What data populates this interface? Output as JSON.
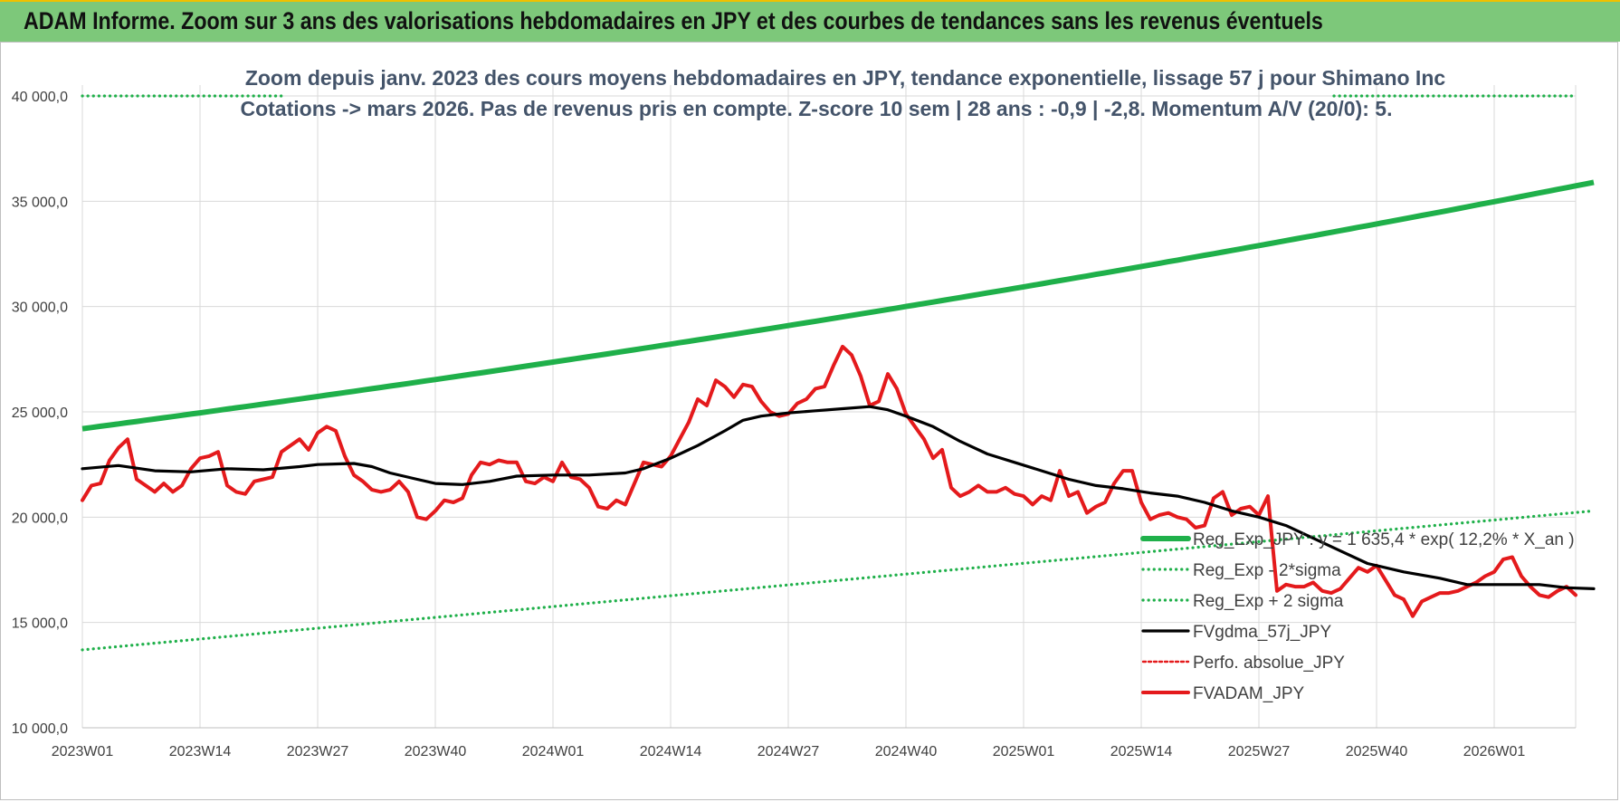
{
  "banner": {
    "title": "ADAM Informe. Zoom sur 3 ans des valorisations hebdomadaires en JPY et des courbes de tendances sans les revenus éventuels"
  },
  "chart_data": {
    "type": "line",
    "title_line1": "Zoom depuis janv. 2023 des cours moyens hebdomadaires en JPY, tendance exponentielle, lissage 57 j pour Shimano Inc",
    "title_line2": "Cotations -> mars 2026. Pas de revenus pris en compte. Z-score 10 sem | 28 ans : -0,9 | -2,8. Momentum A/V (20/0): 5.",
    "x_tick_labels": [
      "2023W01",
      "2023W14",
      "2023W27",
      "2023W40",
      "2024W01",
      "2024W14",
      "2024W27",
      "2024W40",
      "2025W01",
      "2025W14",
      "2025W27",
      "2025W40",
      "2026W01"
    ],
    "y_tick_labels": [
      "10 000,0",
      "15 000,0",
      "20 000,0",
      "25 000,0",
      "30 000,0",
      "35 000,0",
      "40 000,0"
    ],
    "ylim": [
      10000,
      40000
    ],
    "grid": true,
    "legend_position": "right",
    "colors": {
      "green": "#1fb04a",
      "red": "#e41a1c",
      "black": "#000000"
    },
    "series": [
      {
        "name": "Reg_Exp_JPY : y = 1 635,4 * exp( 12,2% * X_an )",
        "style": "solid",
        "color": "#1fb04a",
        "start": [
          0,
          24200
        ],
        "end": [
          167,
          35900
        ]
      },
      {
        "name": "Reg_Exp - 2*sigma",
        "style": "dotted",
        "color": "#1fb04a",
        "start": [
          0,
          13700
        ],
        "end": [
          167,
          20300
        ]
      },
      {
        "name": "Reg_Exp + 2 sigma",
        "style": "dotted",
        "color": "#1fb04a",
        "start": [
          0,
          40000
        ],
        "end": [
          167,
          40000
        ]
      },
      {
        "name": "FVgdma_57j_JPY",
        "style": "solid",
        "color": "#000000",
        "points": [
          [
            0,
            22300
          ],
          [
            4,
            22450
          ],
          [
            8,
            22200
          ],
          [
            12,
            22150
          ],
          [
            16,
            22300
          ],
          [
            20,
            22250
          ],
          [
            24,
            22400
          ],
          [
            26,
            22500
          ],
          [
            30,
            22550
          ],
          [
            32,
            22400
          ],
          [
            34,
            22100
          ],
          [
            37,
            21800
          ],
          [
            39,
            21600
          ],
          [
            42,
            21550
          ],
          [
            45,
            21700
          ],
          [
            48,
            21950
          ],
          [
            52,
            22000
          ],
          [
            56,
            22000
          ],
          [
            60,
            22100
          ],
          [
            62,
            22300
          ],
          [
            65,
            22800
          ],
          [
            68,
            23400
          ],
          [
            71,
            24100
          ],
          [
            73,
            24600
          ],
          [
            75,
            24800
          ],
          [
            78,
            24950
          ],
          [
            81,
            25050
          ],
          [
            84,
            25150
          ],
          [
            87,
            25250
          ],
          [
            89,
            25100
          ],
          [
            91,
            24800
          ],
          [
            94,
            24300
          ],
          [
            97,
            23600
          ],
          [
            100,
            23000
          ],
          [
            103,
            22600
          ],
          [
            106,
            22200
          ],
          [
            109,
            21800
          ],
          [
            112,
            21500
          ],
          [
            115,
            21350
          ],
          [
            118,
            21150
          ],
          [
            121,
            21000
          ],
          [
            124,
            20700
          ],
          [
            127,
            20300
          ],
          [
            130,
            20000
          ],
          [
            133,
            19600
          ],
          [
            136,
            19000
          ],
          [
            139,
            18400
          ],
          [
            142,
            17800
          ],
          [
            146,
            17400
          ],
          [
            150,
            17100
          ],
          [
            153,
            16800
          ],
          [
            157,
            16800
          ],
          [
            161,
            16800
          ],
          [
            164,
            16650
          ],
          [
            167,
            16600
          ]
        ]
      },
      {
        "name": "Perfo. absolue_JPY",
        "style": "dotted",
        "color": "#e41a1c",
        "points": []
      },
      {
        "name": "FVADAM_JPY",
        "style": "solid",
        "color": "#e41a1c",
        "points": [
          [
            0,
            20800
          ],
          [
            1,
            21500
          ],
          [
            2,
            21600
          ],
          [
            3,
            22700
          ],
          [
            4,
            23300
          ],
          [
            5,
            23700
          ],
          [
            6,
            21800
          ],
          [
            7,
            21500
          ],
          [
            8,
            21200
          ],
          [
            9,
            21600
          ],
          [
            10,
            21200
          ],
          [
            11,
            21500
          ],
          [
            12,
            22300
          ],
          [
            13,
            22800
          ],
          [
            14,
            22900
          ],
          [
            15,
            23100
          ],
          [
            16,
            21500
          ],
          [
            17,
            21200
          ],
          [
            18,
            21100
          ],
          [
            19,
            21700
          ],
          [
            20,
            21800
          ],
          [
            21,
            21900
          ],
          [
            22,
            23100
          ],
          [
            23,
            23400
          ],
          [
            24,
            23700
          ],
          [
            25,
            23200
          ],
          [
            26,
            24000
          ],
          [
            27,
            24300
          ],
          [
            28,
            24100
          ],
          [
            29,
            22900
          ],
          [
            30,
            22000
          ],
          [
            31,
            21700
          ],
          [
            32,
            21300
          ],
          [
            33,
            21200
          ],
          [
            34,
            21300
          ],
          [
            35,
            21700
          ],
          [
            36,
            21200
          ],
          [
            37,
            20000
          ],
          [
            38,
            19900
          ],
          [
            39,
            20300
          ],
          [
            40,
            20800
          ],
          [
            41,
            20700
          ],
          [
            42,
            20900
          ],
          [
            43,
            22000
          ],
          [
            44,
            22600
          ],
          [
            45,
            22500
          ],
          [
            46,
            22700
          ],
          [
            47,
            22600
          ],
          [
            48,
            22600
          ],
          [
            49,
            21700
          ],
          [
            50,
            21600
          ],
          [
            51,
            21900
          ],
          [
            52,
            21700
          ],
          [
            53,
            22600
          ],
          [
            54,
            21900
          ],
          [
            55,
            21800
          ],
          [
            56,
            21400
          ],
          [
            57,
            20500
          ],
          [
            58,
            20400
          ],
          [
            59,
            20800
          ],
          [
            60,
            20600
          ],
          [
            61,
            21600
          ],
          [
            62,
            22600
          ],
          [
            63,
            22500
          ],
          [
            64,
            22400
          ],
          [
            65,
            22900
          ],
          [
            66,
            23700
          ],
          [
            67,
            24500
          ],
          [
            68,
            25600
          ],
          [
            69,
            25300
          ],
          [
            70,
            26500
          ],
          [
            71,
            26200
          ],
          [
            72,
            25700
          ],
          [
            73,
            26300
          ],
          [
            74,
            26200
          ],
          [
            75,
            25500
          ],
          [
            76,
            25000
          ],
          [
            77,
            24800
          ],
          [
            78,
            24900
          ],
          [
            79,
            25400
          ],
          [
            80,
            25600
          ],
          [
            81,
            26100
          ],
          [
            82,
            26200
          ],
          [
            83,
            27200
          ],
          [
            84,
            28100
          ],
          [
            85,
            27700
          ],
          [
            86,
            26700
          ],
          [
            87,
            25300
          ],
          [
            88,
            25500
          ],
          [
            89,
            26800
          ],
          [
            90,
            26100
          ],
          [
            91,
            24900
          ],
          [
            92,
            24300
          ],
          [
            93,
            23700
          ],
          [
            94,
            22800
          ],
          [
            95,
            23200
          ],
          [
            96,
            21400
          ],
          [
            97,
            21000
          ],
          [
            98,
            21200
          ],
          [
            99,
            21500
          ],
          [
            100,
            21200
          ],
          [
            101,
            21200
          ],
          [
            102,
            21400
          ],
          [
            103,
            21100
          ],
          [
            104,
            21000
          ],
          [
            105,
            20600
          ],
          [
            106,
            21000
          ],
          [
            107,
            20800
          ],
          [
            108,
            22200
          ],
          [
            109,
            21000
          ],
          [
            110,
            21200
          ],
          [
            111,
            20200
          ],
          [
            112,
            20500
          ],
          [
            113,
            20700
          ],
          [
            114,
            21600
          ],
          [
            115,
            22200
          ],
          [
            116,
            22200
          ],
          [
            117,
            20700
          ],
          [
            118,
            19900
          ],
          [
            119,
            20100
          ],
          [
            120,
            20200
          ],
          [
            121,
            20000
          ],
          [
            122,
            19900
          ],
          [
            123,
            19500
          ],
          [
            124,
            19600
          ],
          [
            125,
            20900
          ],
          [
            126,
            21200
          ],
          [
            127,
            20100
          ],
          [
            128,
            20400
          ],
          [
            129,
            20500
          ],
          [
            130,
            20100
          ],
          [
            131,
            21000
          ],
          [
            132,
            16500
          ],
          [
            133,
            16800
          ],
          [
            134,
            16700
          ],
          [
            135,
            16700
          ],
          [
            136,
            16900
          ],
          [
            137,
            16500
          ],
          [
            138,
            16400
          ],
          [
            139,
            16600
          ],
          [
            140,
            17100
          ],
          [
            141,
            17600
          ],
          [
            142,
            17400
          ],
          [
            143,
            17700
          ],
          [
            144,
            17000
          ],
          [
            145,
            16300
          ],
          [
            146,
            16100
          ],
          [
            147,
            15300
          ],
          [
            148,
            16000
          ],
          [
            149,
            16200
          ],
          [
            150,
            16400
          ],
          [
            151,
            16400
          ],
          [
            152,
            16500
          ],
          [
            153,
            16700
          ],
          [
            154,
            16900
          ],
          [
            155,
            17200
          ],
          [
            156,
            17400
          ],
          [
            157,
            18000
          ],
          [
            158,
            18100
          ],
          [
            159,
            17200
          ],
          [
            160,
            16700
          ],
          [
            161,
            16300
          ],
          [
            162,
            16200
          ],
          [
            163,
            16500
          ],
          [
            164,
            16700
          ],
          [
            165,
            16300
          ]
        ]
      }
    ]
  }
}
